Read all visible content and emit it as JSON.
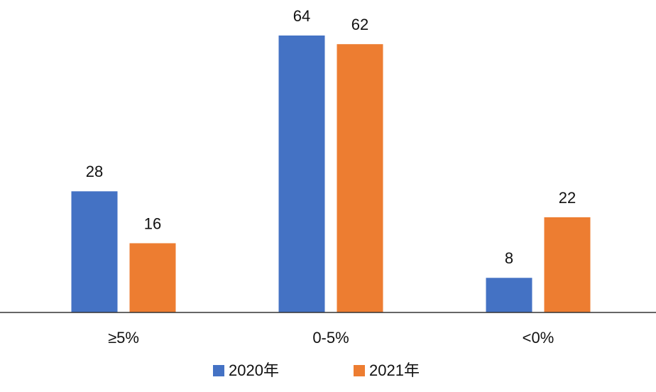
{
  "chart_data": {
    "type": "bar",
    "categories": [
      "≥5%",
      "0-5%",
      "<0%"
    ],
    "series": [
      {
        "name": "2020年",
        "color": "#4472c4",
        "values": [
          28,
          64,
          8
        ]
      },
      {
        "name": "2021年",
        "color": "#ed7d31",
        "values": [
          16,
          62,
          22
        ]
      }
    ],
    "legend": "bottom"
  }
}
